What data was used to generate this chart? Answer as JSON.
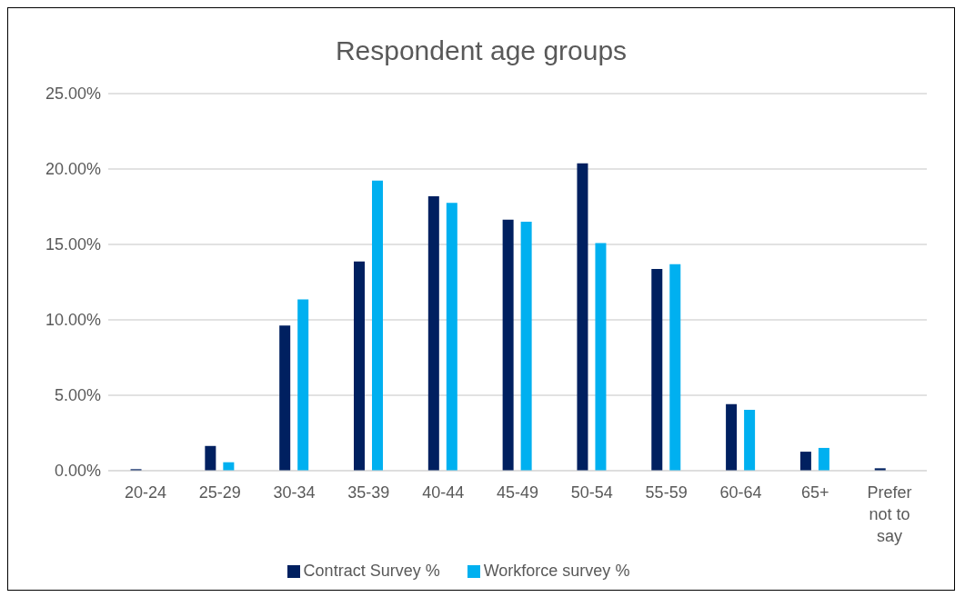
{
  "chart_data": {
    "type": "bar",
    "title": "Respondent age groups",
    "categories": [
      "20-24",
      "25-29",
      "30-34",
      "35-39",
      "40-44",
      "45-49",
      "50-54",
      "55-59",
      "60-64",
      "65+",
      "Prefer not to say"
    ],
    "series": [
      {
        "name": "Contract Survey %",
        "color": "#002060",
        "values": [
          0.1,
          1.64,
          9.62,
          13.87,
          18.2,
          16.64,
          20.38,
          13.38,
          4.41,
          1.26,
          0.16
        ]
      },
      {
        "name": "Workforce survey %",
        "color": "#00b0f0",
        "values": [
          0,
          0.56,
          11.35,
          19.23,
          17.75,
          16.5,
          15.09,
          13.69,
          4.03,
          1.51,
          0
        ]
      }
    ],
    "ylim": [
      0,
      25
    ],
    "yticks": [
      {
        "value": 0,
        "label": "0.00%"
      },
      {
        "value": 5,
        "label": "5.00%"
      },
      {
        "value": 10,
        "label": "10.00%"
      },
      {
        "value": 15,
        "label": "15.00%"
      },
      {
        "value": 20,
        "label": "20.00%"
      },
      {
        "value": 25,
        "label": "25.00%"
      }
    ],
    "grid": "y",
    "legend": "bottom"
  }
}
